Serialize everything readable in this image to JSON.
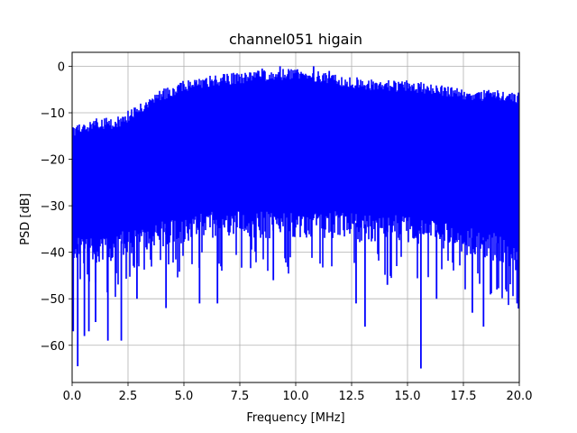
{
  "chart_data": {
    "type": "line",
    "title": "channel051 higain",
    "xlabel": "Frequency [MHz]",
    "ylabel": "PSD [dB]",
    "xlim": [
      0,
      20
    ],
    "ylim": [
      -68,
      3
    ],
    "grid": true,
    "x_ticks": [
      0.0,
      2.5,
      5.0,
      7.5,
      10.0,
      12.5,
      15.0,
      17.5,
      20.0
    ],
    "x_tick_labels": [
      "0.0",
      "2.5",
      "5.0",
      "7.5",
      "10.0",
      "12.5",
      "15.0",
      "17.5",
      "20.0"
    ],
    "y_ticks": [
      0,
      -10,
      -20,
      -30,
      -40,
      -50,
      -60
    ],
    "y_tick_labels": [
      "0",
      "−10",
      "−20",
      "−30",
      "−40",
      "−50",
      "−60"
    ],
    "series": [
      {
        "color": "#0000ff",
        "envelope": {
          "x": [
            0.0,
            1.0,
            2.0,
            3.0,
            4.0,
            5.0,
            6.0,
            7.0,
            8.0,
            9.0,
            10.0,
            11.0,
            12.0,
            13.0,
            14.0,
            15.0,
            16.0,
            17.0,
            18.0,
            19.0,
            20.0
          ],
          "upper": [
            -13,
            -11,
            -11,
            -8,
            -5,
            -3,
            -2,
            -1.5,
            -1,
            -0.5,
            -0.5,
            -1,
            -2,
            -2.5,
            -3,
            -3,
            -3.5,
            -4.5,
            -5,
            -5,
            -5.5
          ],
          "typical_floor": [
            -42,
            -43,
            -42,
            -40,
            -39,
            -38,
            -37,
            -37,
            -37,
            -37,
            -37,
            -37,
            -37,
            -38,
            -38,
            -38,
            -39,
            -40,
            -41,
            -42,
            -46
          ]
        },
        "dips": [
          {
            "x": 0.05,
            "y": -57
          },
          {
            "x": 0.25,
            "y": -64.5
          },
          {
            "x": 0.55,
            "y": -58
          },
          {
            "x": 0.75,
            "y": -57
          },
          {
            "x": 1.05,
            "y": -55
          },
          {
            "x": 1.6,
            "y": -59
          },
          {
            "x": 2.2,
            "y": -59
          },
          {
            "x": 2.9,
            "y": -50
          },
          {
            "x": 4.2,
            "y": -52
          },
          {
            "x": 5.7,
            "y": -51
          },
          {
            "x": 6.5,
            "y": -51
          },
          {
            "x": 9.0,
            "y": -46
          },
          {
            "x": 12.7,
            "y": -51
          },
          {
            "x": 13.1,
            "y": -56
          },
          {
            "x": 14.1,
            "y": -47
          },
          {
            "x": 15.6,
            "y": -65
          },
          {
            "x": 16.3,
            "y": -50
          },
          {
            "x": 17.9,
            "y": -53
          },
          {
            "x": 18.4,
            "y": -56
          },
          {
            "x": 19.0,
            "y": -48
          },
          {
            "x": 19.9,
            "y": -51
          }
        ],
        "peaks": [
          {
            "x": 8.5,
            "y": -0.5
          },
          {
            "x": 9.3,
            "y": 0
          },
          {
            "x": 10.8,
            "y": 0
          },
          {
            "x": 11.5,
            "y": -1
          }
        ]
      }
    ]
  }
}
